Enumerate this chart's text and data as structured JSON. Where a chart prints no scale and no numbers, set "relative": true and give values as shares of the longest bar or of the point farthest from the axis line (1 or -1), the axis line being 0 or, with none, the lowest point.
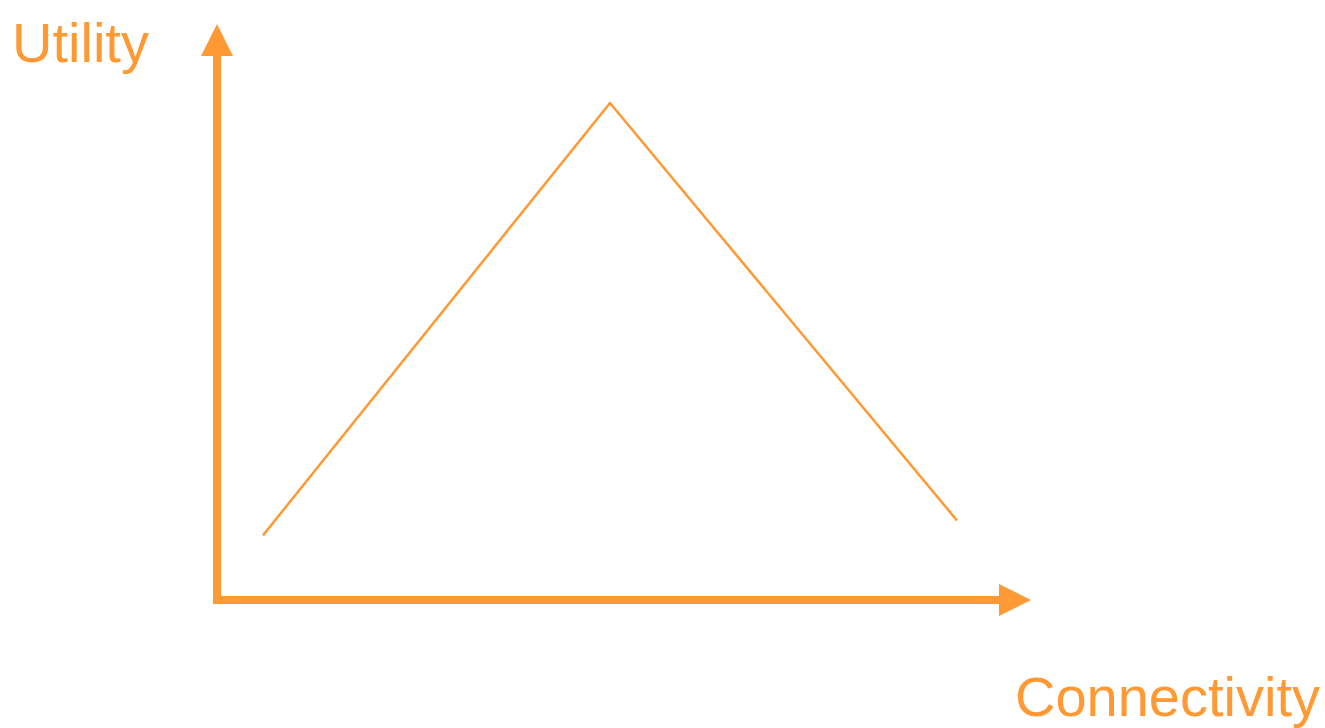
{
  "chart_data": {
    "type": "line",
    "xlabel": "Connectivity",
    "ylabel": "Utility",
    "relative": true,
    "categories": [
      null,
      null,
      null
    ],
    "series": [
      {
        "color": "#ff9933",
        "values": [
          0.13,
          1,
          0.16
        ]
      }
    ]
  }
}
